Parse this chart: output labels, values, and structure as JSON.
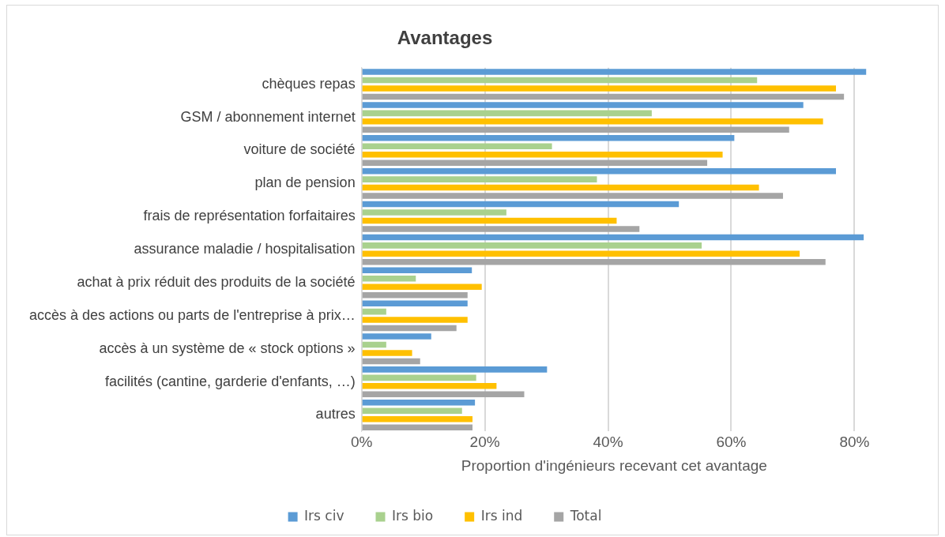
{
  "chart_data": {
    "type": "bar",
    "orientation": "horizontal",
    "title": "Avantages",
    "xlabel": "Proportion d'ingénieurs recevant cet avantage",
    "categories": [
      "chèques repas",
      "GSM / abonnement internet",
      "voiture de société",
      "plan de pension",
      "frais de représentation forfaitaires",
      "assurance maladie / hospitalisation",
      "achat à prix réduit des produits de la société",
      "accès à des actions ou parts de l'entreprise à prix…",
      "accès à un système de « stock options »",
      "facilités (cantine, garderie d'enfants, …)",
      "autres"
    ],
    "series": [
      {
        "name": "Irs civ",
        "color": "#5b9bd5",
        "values": [
          81.9,
          71.7,
          60.5,
          77.0,
          51.5,
          81.5,
          17.9,
          17.2,
          11.3,
          30.1,
          18.4
        ]
      },
      {
        "name": "Irs bio",
        "color": "#a9d18e",
        "values": [
          64.2,
          47.1,
          30.9,
          38.2,
          23.5,
          55.2,
          8.8,
          4.0,
          4.0,
          18.6,
          16.3
        ]
      },
      {
        "name": "Irs ind",
        "color": "#ffc000",
        "values": [
          77.0,
          74.9,
          58.6,
          64.5,
          41.4,
          71.1,
          19.5,
          17.2,
          8.2,
          21.9,
          18.0
        ]
      },
      {
        "name": "Total",
        "color": "#a5a5a5",
        "values": [
          78.3,
          69.4,
          56.1,
          68.4,
          45.1,
          75.3,
          17.2,
          15.4,
          9.5,
          26.4,
          18.0
        ]
      }
    ],
    "xlim": [
      0,
      82
    ],
    "xticks": [
      {
        "value": 0,
        "label": "0%"
      },
      {
        "value": 20,
        "label": "20%"
      },
      {
        "value": 40,
        "label": "40%"
      },
      {
        "value": 60,
        "label": "60%"
      },
      {
        "value": 80,
        "label": "80%"
      }
    ],
    "grid": "x",
    "legend": "bottom"
  }
}
